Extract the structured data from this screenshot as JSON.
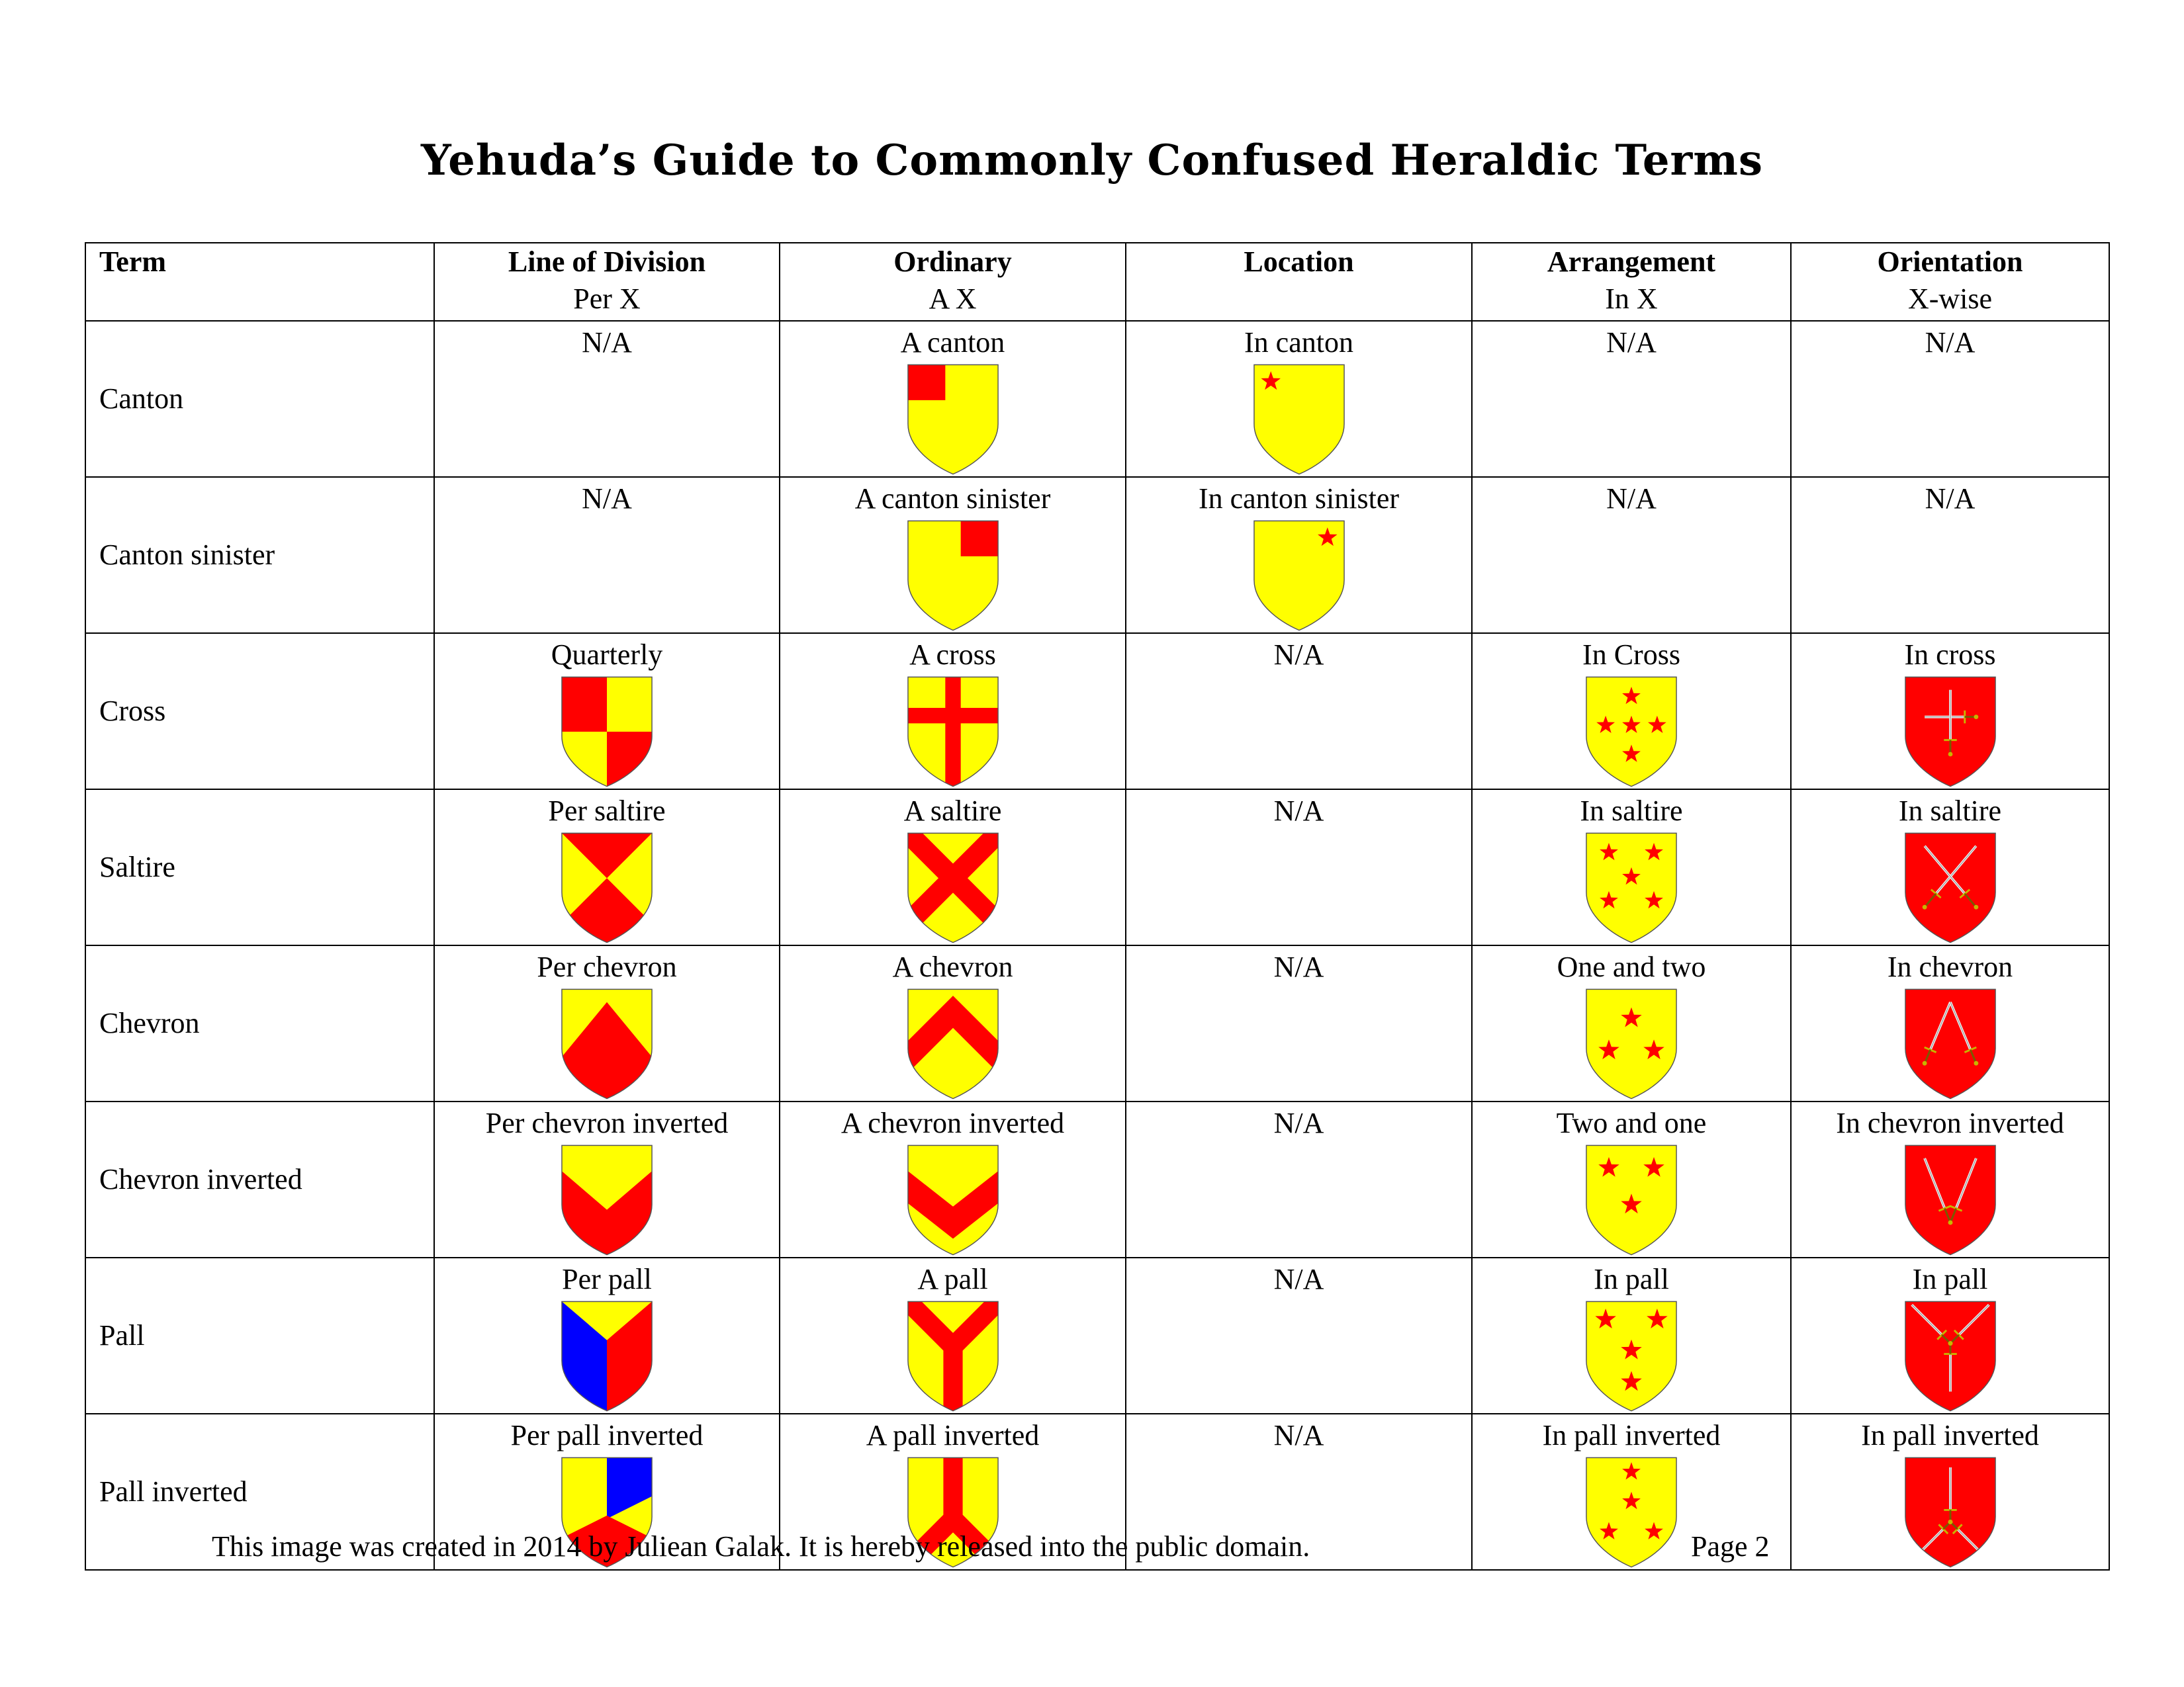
{
  "title": "Yehuda’s Guide to Commonly Confused Heraldic Terms",
  "colors": {
    "or": "#FFFF00",
    "gules": "#FF0000",
    "azure": "#0000FF",
    "stroke": "#555555"
  },
  "headers": {
    "term": "Term",
    "line": {
      "name": "Line of Division",
      "sub": "Per X"
    },
    "ordinary": {
      "name": "Ordinary",
      "sub": "A X"
    },
    "location": {
      "name": "Location",
      "sub": ""
    },
    "arrangement": {
      "name": "Arrangement",
      "sub": "In X"
    },
    "orientation": {
      "name": "Orientation",
      "sub": "X-wise"
    }
  },
  "rows": [
    {
      "term": "Canton",
      "line": {
        "label": "N/A",
        "icon": null
      },
      "ordinary": {
        "label": "A canton",
        "icon": "ord-canton"
      },
      "location": {
        "label": "In canton",
        "icon": "loc-canton"
      },
      "arrangement": {
        "label": "N/A",
        "icon": null
      },
      "orientation": {
        "label": "N/A",
        "icon": null
      }
    },
    {
      "term": "Canton sinister",
      "line": {
        "label": "N/A",
        "icon": null
      },
      "ordinary": {
        "label": "A canton sinister",
        "icon": "ord-canton-sinister"
      },
      "location": {
        "label": "In canton sinister",
        "icon": "loc-canton-sinister"
      },
      "arrangement": {
        "label": "N/A",
        "icon": null
      },
      "orientation": {
        "label": "N/A",
        "icon": null
      }
    },
    {
      "term": "Cross",
      "line": {
        "label": "Quarterly",
        "icon": "per-quarterly"
      },
      "ordinary": {
        "label": "A cross",
        "icon": "ord-cross"
      },
      "location": {
        "label": "N/A",
        "icon": null
      },
      "arrangement": {
        "label": "In Cross",
        "icon": "arr-cross"
      },
      "orientation": {
        "label": "In cross",
        "icon": "ori-cross"
      }
    },
    {
      "term": "Saltire",
      "line": {
        "label": "Per saltire",
        "icon": "per-saltire"
      },
      "ordinary": {
        "label": "A saltire",
        "icon": "ord-saltire"
      },
      "location": {
        "label": "N/A",
        "icon": null
      },
      "arrangement": {
        "label": "In saltire",
        "icon": "arr-saltire"
      },
      "orientation": {
        "label": "In saltire",
        "icon": "ori-saltire"
      }
    },
    {
      "term": "Chevron",
      "line": {
        "label": "Per chevron",
        "icon": "per-chevron"
      },
      "ordinary": {
        "label": "A chevron",
        "icon": "ord-chevron"
      },
      "location": {
        "label": "N/A",
        "icon": null
      },
      "arrangement": {
        "label": "One and two",
        "icon": "arr-one-two"
      },
      "orientation": {
        "label": "In chevron",
        "icon": "ori-chevron"
      }
    },
    {
      "term": "Chevron inverted",
      "line": {
        "label": "Per chevron inverted",
        "icon": "per-chevron-inverted"
      },
      "ordinary": {
        "label": "A chevron inverted",
        "icon": "ord-chevron-inverted"
      },
      "location": {
        "label": "N/A",
        "icon": null
      },
      "arrangement": {
        "label": "Two and one",
        "icon": "arr-two-one"
      },
      "orientation": {
        "label": "In chevron inverted",
        "icon": "ori-chevron-inverted"
      }
    },
    {
      "term": "Pall",
      "line": {
        "label": "Per pall",
        "icon": "per-pall"
      },
      "ordinary": {
        "label": "A pall",
        "icon": "ord-pall"
      },
      "location": {
        "label": "N/A",
        "icon": null
      },
      "arrangement": {
        "label": "In pall",
        "icon": "arr-pall"
      },
      "orientation": {
        "label": "In pall",
        "icon": "ori-pall"
      }
    },
    {
      "term": "Pall inverted",
      "line": {
        "label": "Per pall inverted",
        "icon": "per-pall-inverted"
      },
      "ordinary": {
        "label": "A pall inverted",
        "icon": "ord-pall-inverted"
      },
      "location": {
        "label": "N/A",
        "icon": null
      },
      "arrangement": {
        "label": "In pall inverted",
        "icon": "arr-pall-inverted"
      },
      "orientation": {
        "label": "In pall inverted",
        "icon": "ori-pall-inverted"
      }
    }
  ],
  "footer": {
    "credit": "This image was created in 2014 by Juliean Galak.  It is hereby released into the public domain.",
    "page": "Page 2"
  }
}
